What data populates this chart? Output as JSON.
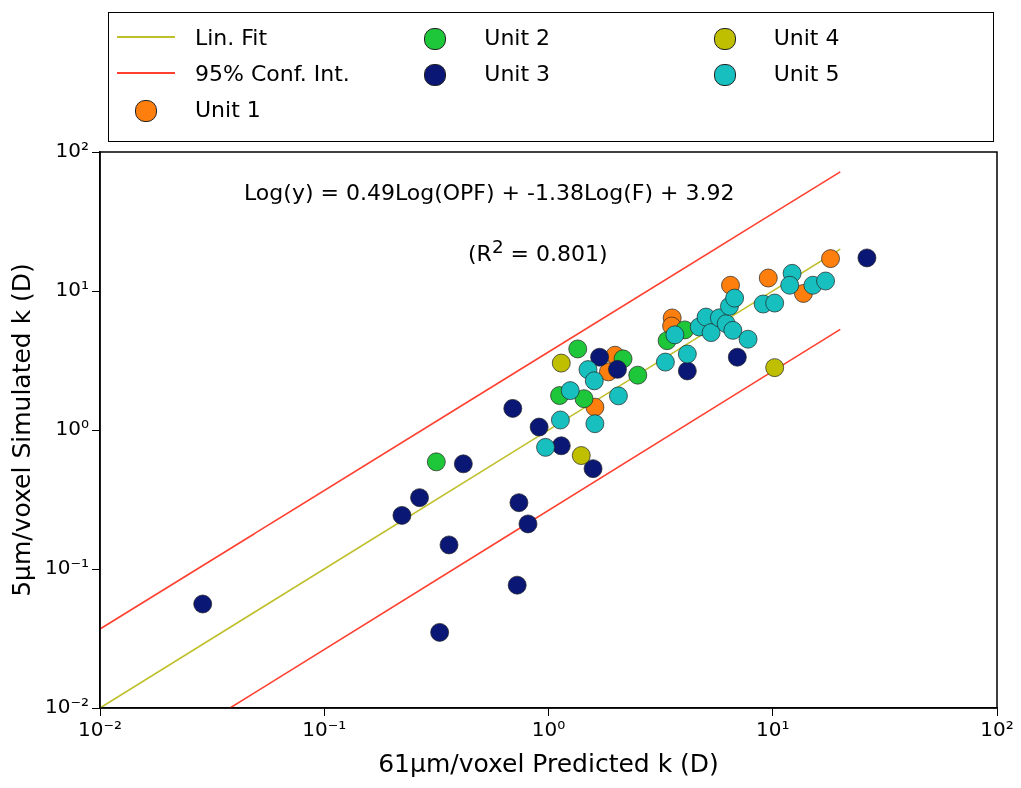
{
  "chart_data": {
    "type": "scatter",
    "xlabel": "61μm/voxel Predicted k (D)",
    "ylabel": "5μm/voxel Simulated k (D)",
    "log": "xy",
    "grid": false,
    "legend": "top",
    "marker": "circle",
    "xlim": [
      0.01,
      100
    ],
    "ylim": [
      0.01,
      100
    ],
    "xticks": [
      {
        "value": 0.01,
        "label": "10⁻²"
      },
      {
        "value": 0.1,
        "label": "10⁻¹"
      },
      {
        "value": 1,
        "label": "10⁰"
      },
      {
        "value": 10,
        "label": "10¹"
      },
      {
        "value": 100,
        "label": "10²"
      }
    ],
    "yticks": [
      {
        "value": 0.01,
        "label": "10⁻²"
      },
      {
        "value": 0.1,
        "label": "10⁻¹"
      },
      {
        "value": 1,
        "label": "10⁰"
      },
      {
        "value": 10,
        "label": "10¹"
      },
      {
        "value": 100,
        "label": "10²"
      }
    ],
    "annotations": [
      "Log(y) = 0.49Log(OPF) + -1.38Log(F) + 3.92",
      "(R$^{2}$  = 0.801)"
    ],
    "series": [
      {
        "name": "Lin. Fit",
        "type": "line",
        "marker": "none",
        "color": "#bfbf2a",
        "x": [
          0.01,
          20
        ],
        "values": [
          0.01,
          20
        ]
      },
      {
        "name": "95% Conf. Int.",
        "type": "line",
        "marker": "none",
        "color": "#ff3f2f",
        "x": [
          0.01,
          20
        ],
        "values": [
          0.037,
          72
        ]
      },
      {
        "type": "line",
        "marker": "none",
        "color": "#ff3f2f",
        "x": [
          0.038,
          20
        ],
        "values": [
          0.01,
          5.3
        ]
      },
      {
        "name": "Unit 1",
        "color": "#ff7f0e",
        "x": [
          18.1,
          9.55,
          13.7,
          6.48,
          3.56,
          3.54,
          1.98,
          1.85,
          1.61
        ],
        "values": [
          17.1,
          12.4,
          9.6,
          11,
          6.4,
          5.6,
          3.45,
          2.62,
          1.46
        ]
      },
      {
        "name": "Unit 2",
        "color": "#1ec73a",
        "x": [
          0.316,
          1.35,
          2.15,
          2.5,
          1.12,
          1.44,
          3.38,
          4.05
        ],
        "values": [
          0.59,
          3.83,
          3.25,
          2.48,
          1.77,
          1.68,
          4.39,
          5.25
        ]
      },
      {
        "name": "Unit 3",
        "color": "#0a1775",
        "x": [
          0.0287,
          0.327,
          0.222,
          0.266,
          0.36,
          0.417,
          0.693,
          0.908,
          0.738,
          0.81,
          0.725,
          26.3,
          1.14,
          1.58,
          1.69,
          2.03,
          4.16,
          6.95
        ],
        "values": [
          0.056,
          0.035,
          0.243,
          0.326,
          0.149,
          0.571,
          1.43,
          1.05,
          0.3,
          0.211,
          0.0765,
          17.3,
          0.77,
          0.527,
          3.34,
          2.73,
          2.66,
          3.34
        ]
      },
      {
        "name": "Unit 4",
        "color": "#bfbf00",
        "x": [
          1.14,
          1.4,
          10.2
        ],
        "values": [
          3.03,
          0.655,
          2.81
        ]
      },
      {
        "name": "Unit 5",
        "color": "#17bfbf",
        "x": [
          0.97,
          1.5,
          1.6,
          1.25,
          2.05,
          1.13,
          1.61,
          3.32,
          4.16,
          3.66,
          4.7,
          5.04,
          5.31,
          5.78,
          6.2,
          6.64,
          7.76,
          6.41,
          6.76,
          9.06,
          10.2,
          12.2,
          11.9,
          15.1,
          17.2
        ],
        "values": [
          0.75,
          2.72,
          2.26,
          1.92,
          1.76,
          1.18,
          1.11,
          3.08,
          3.52,
          4.84,
          5.51,
          6.49,
          5.02,
          6.41,
          5.82,
          5.21,
          4.5,
          7.76,
          8.89,
          8.06,
          8.19,
          13.4,
          11,
          11,
          11.8
        ]
      }
    ]
  }
}
